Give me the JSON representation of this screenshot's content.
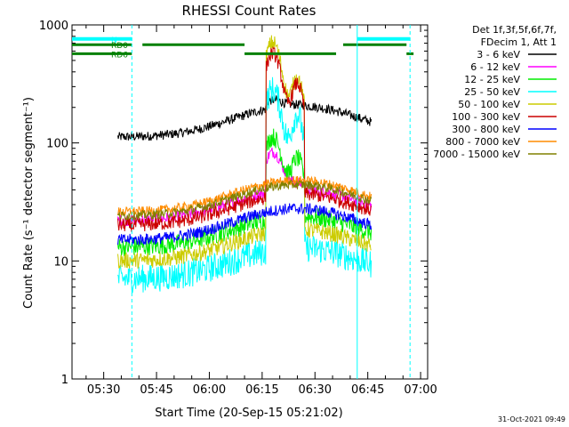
{
  "chart_data": {
    "type": "line",
    "title": "RHESSI Count Rates",
    "xlabel": "Start Time (20-Sep-15 05:21:02)",
    "ylabel": "Count Rate (s⁻¹ detector segment⁻¹)",
    "yscale": "log",
    "ylim": [
      1,
      1000
    ],
    "xlim": [
      "05:21",
      "07:02"
    ],
    "x_ticks": [
      "05:30",
      "05:45",
      "06:00",
      "06:15",
      "06:30",
      "06:45",
      "07:00"
    ],
    "y_ticks": [
      "1",
      "10",
      "100",
      "1000"
    ],
    "timestamp": "31-Oct-2021 09:49",
    "legend_header": [
      "Det 1f,3f,5f,6f,7f,",
      "FDecim 1, Att 1"
    ],
    "data_start": "05:34",
    "data_end": "06:46",
    "series": [
      {
        "name": "3 - 6 keV",
        "color": "#000000",
        "base": 112,
        "flare": 30,
        "second": 0,
        "noise": 0.04
      },
      {
        "name": "6 - 12 keV",
        "color": "#ff00ff",
        "base": 22,
        "flare": 40,
        "second": 0,
        "noise": 0.05
      },
      {
        "name": "12 - 25 keV",
        "color": "#00ee00",
        "base": 13,
        "flare": 80,
        "second": 40,
        "noise": 0.08
      },
      {
        "name": "25 - 50 keV",
        "color": "#00ffff",
        "base": 7,
        "flare": 240,
        "second": 130,
        "noise": 0.12
      },
      {
        "name": "50 - 100 keV",
        "color": "#cccc00",
        "base": 10,
        "flare": 620,
        "second": 260,
        "noise": 0.07
      },
      {
        "name": "100 - 300 keV",
        "color": "#cc0000",
        "base": 20,
        "flare": 480,
        "second": 220,
        "noise": 0.06
      },
      {
        "name": "300 - 800 keV",
        "color": "#0000ff",
        "base": 15,
        "flare": 0,
        "second": 0,
        "noise": 0.05
      },
      {
        "name": "800 - 7000 keV",
        "color": "#ff8c00",
        "base": 26,
        "flare": 0,
        "second": 0,
        "noise": 0.04
      },
      {
        "name": "7000 - 15000 keV",
        "color": "#808000",
        "base": 24,
        "flare": 0,
        "second": 0,
        "noise": 0.04
      }
    ],
    "attenuator_segments": [
      {
        "label": "N",
        "color": "#00ffff",
        "y": 760,
        "start": "05:21",
        "end": "05:38"
      },
      {
        "label": "",
        "color": "#00ffff",
        "y": 760,
        "start": "06:42",
        "end": "06:57"
      }
    ],
    "flag_segments": [
      {
        "label": "RD0",
        "color": "#008000",
        "y": 680,
        "start": "05:21",
        "end": "05:38"
      },
      {
        "label": "",
        "color": "#008000",
        "y": 680,
        "start": "05:41",
        "end": "06:10"
      },
      {
        "label": "",
        "color": "#008000",
        "y": 680,
        "start": "06:38",
        "end": "06:56"
      },
      {
        "label": "RD6",
        "color": "#008000",
        "y": 570,
        "start": "05:21",
        "end": "05:38"
      },
      {
        "label": "",
        "color": "#008000",
        "y": 570,
        "start": "06:10",
        "end": "06:36"
      },
      {
        "label": "",
        "color": "#008000",
        "y": 570,
        "start": "06:56",
        "end": "06:58"
      }
    ],
    "vertical_markers": [
      {
        "time": "05:38",
        "style": "dashed",
        "color": "#00ffff"
      },
      {
        "time": "06:42",
        "style": "solid",
        "color": "#00ffff"
      },
      {
        "time": "06:57",
        "style": "dashed",
        "color": "#00ffff"
      }
    ]
  }
}
